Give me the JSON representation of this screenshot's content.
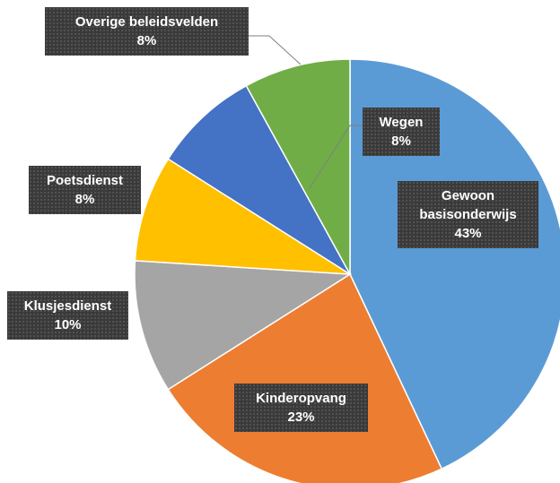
{
  "chart_data": {
    "type": "pie",
    "categories": [
      "Gewoon basisonderwijs",
      "Kinderopvang",
      "Klusjesdienst",
      "Poetsdienst",
      "Wegen",
      "Overige beleidsvelden"
    ],
    "values": [
      43,
      23,
      10,
      8,
      8,
      8
    ],
    "value_labels": [
      "43%",
      "23%",
      "10%",
      "8%",
      "8%",
      "8%"
    ],
    "colors": [
      "#5b9bd5",
      "#ed7d31",
      "#a5a5a5",
      "#ffc000",
      "#4472c4",
      "#70ad47"
    ]
  }
}
